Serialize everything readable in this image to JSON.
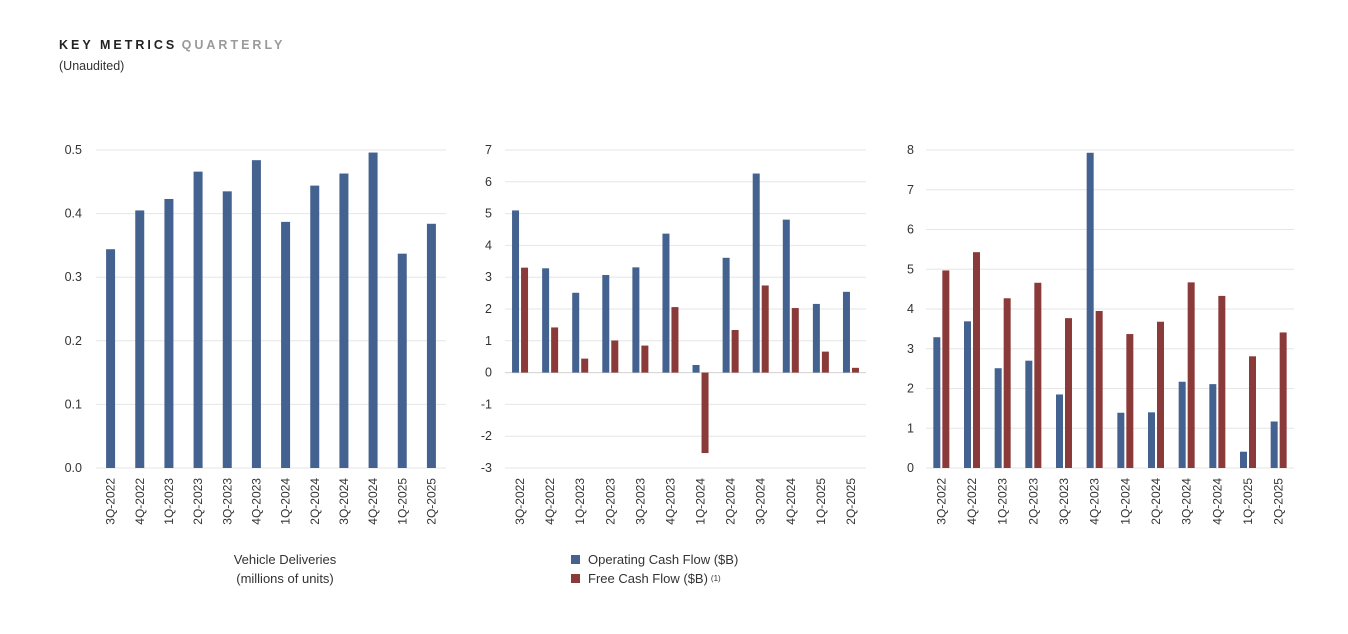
{
  "header": {
    "title_bold": "KEY METRICS",
    "title_light": "QUARTERLY",
    "subtitle": "(Unaudited)"
  },
  "colors": {
    "blue": "#44628f",
    "red": "#8b3a3a",
    "grid": "#e6e6e6"
  },
  "chart_data": [
    {
      "type": "bar",
      "categories": [
        "3Q-2022",
        "4Q-2022",
        "1Q-2023",
        "2Q-2023",
        "3Q-2023",
        "4Q-2023",
        "1Q-2024",
        "2Q-2024",
        "3Q-2024",
        "4Q-2024",
        "1Q-2025",
        "2Q-2025"
      ],
      "yticks": [
        "0.5",
        "0.4",
        "0.3",
        "0.2",
        "0.1",
        "0.0"
      ],
      "ylim": [
        0,
        0.5
      ],
      "series": [
        {
          "values": [
            0.344,
            0.405,
            0.423,
            0.466,
            0.435,
            0.484,
            0.387,
            0.444,
            0.463,
            0.496,
            0.337,
            0.384
          ]
        }
      ],
      "caption_lines": [
        "Vehicle Deliveries",
        "(millions of units)"
      ],
      "grid": true
    },
    {
      "type": "bar",
      "categories": [
        "3Q-2022",
        "4Q-2022",
        "1Q-2023",
        "2Q-2023",
        "3Q-2023",
        "4Q-2023",
        "1Q-2024",
        "2Q-2024",
        "3Q-2024",
        "4Q-2024",
        "1Q-2025",
        "2Q-2025"
      ],
      "yticks": [
        "7",
        "6",
        "5",
        "4",
        "3",
        "2",
        "1",
        "0",
        "-1",
        "-2",
        "-3"
      ],
      "ylim": [
        -3,
        7
      ],
      "series": [
        {
          "name": "Operating Cash Flow ($B)",
          "values": [
            5.1,
            3.28,
            2.51,
            3.07,
            3.31,
            4.37,
            0.24,
            3.61,
            6.26,
            4.81,
            2.16,
            2.54
          ]
        },
        {
          "name": "Free Cash Flow ($B)",
          "values": [
            3.3,
            1.42,
            0.44,
            1.01,
            0.85,
            2.06,
            -2.53,
            1.34,
            2.74,
            2.03,
            0.66,
            0.15
          ]
        }
      ],
      "legend": {
        "items": [
          "Operating Cash Flow ($B)",
          "Free Cash Flow ($B)"
        ],
        "note": "(1)",
        "placement": "bottom-center"
      },
      "grid": true
    },
    {
      "type": "bar",
      "categories": [
        "3Q-2022",
        "4Q-2022",
        "1Q-2023",
        "2Q-2023",
        "3Q-2023",
        "4Q-2023",
        "1Q-2024",
        "2Q-2024",
        "3Q-2024",
        "4Q-2024",
        "1Q-2025",
        "2Q-2025"
      ],
      "yticks": [
        "8",
        "7",
        "6",
        "5",
        "4",
        "3",
        "2",
        "1",
        "0"
      ],
      "ylim": [
        0,
        8
      ],
      "series": [
        {
          "values": [
            3.29,
            3.69,
            2.51,
            2.7,
            1.85,
            7.93,
            1.39,
            1.4,
            2.17,
            2.11,
            0.41,
            1.17
          ]
        },
        {
          "values": [
            4.97,
            5.43,
            4.27,
            4.66,
            3.77,
            3.95,
            3.37,
            3.68,
            4.67,
            4.33,
            2.81,
            3.41
          ]
        }
      ],
      "grid": true
    }
  ]
}
